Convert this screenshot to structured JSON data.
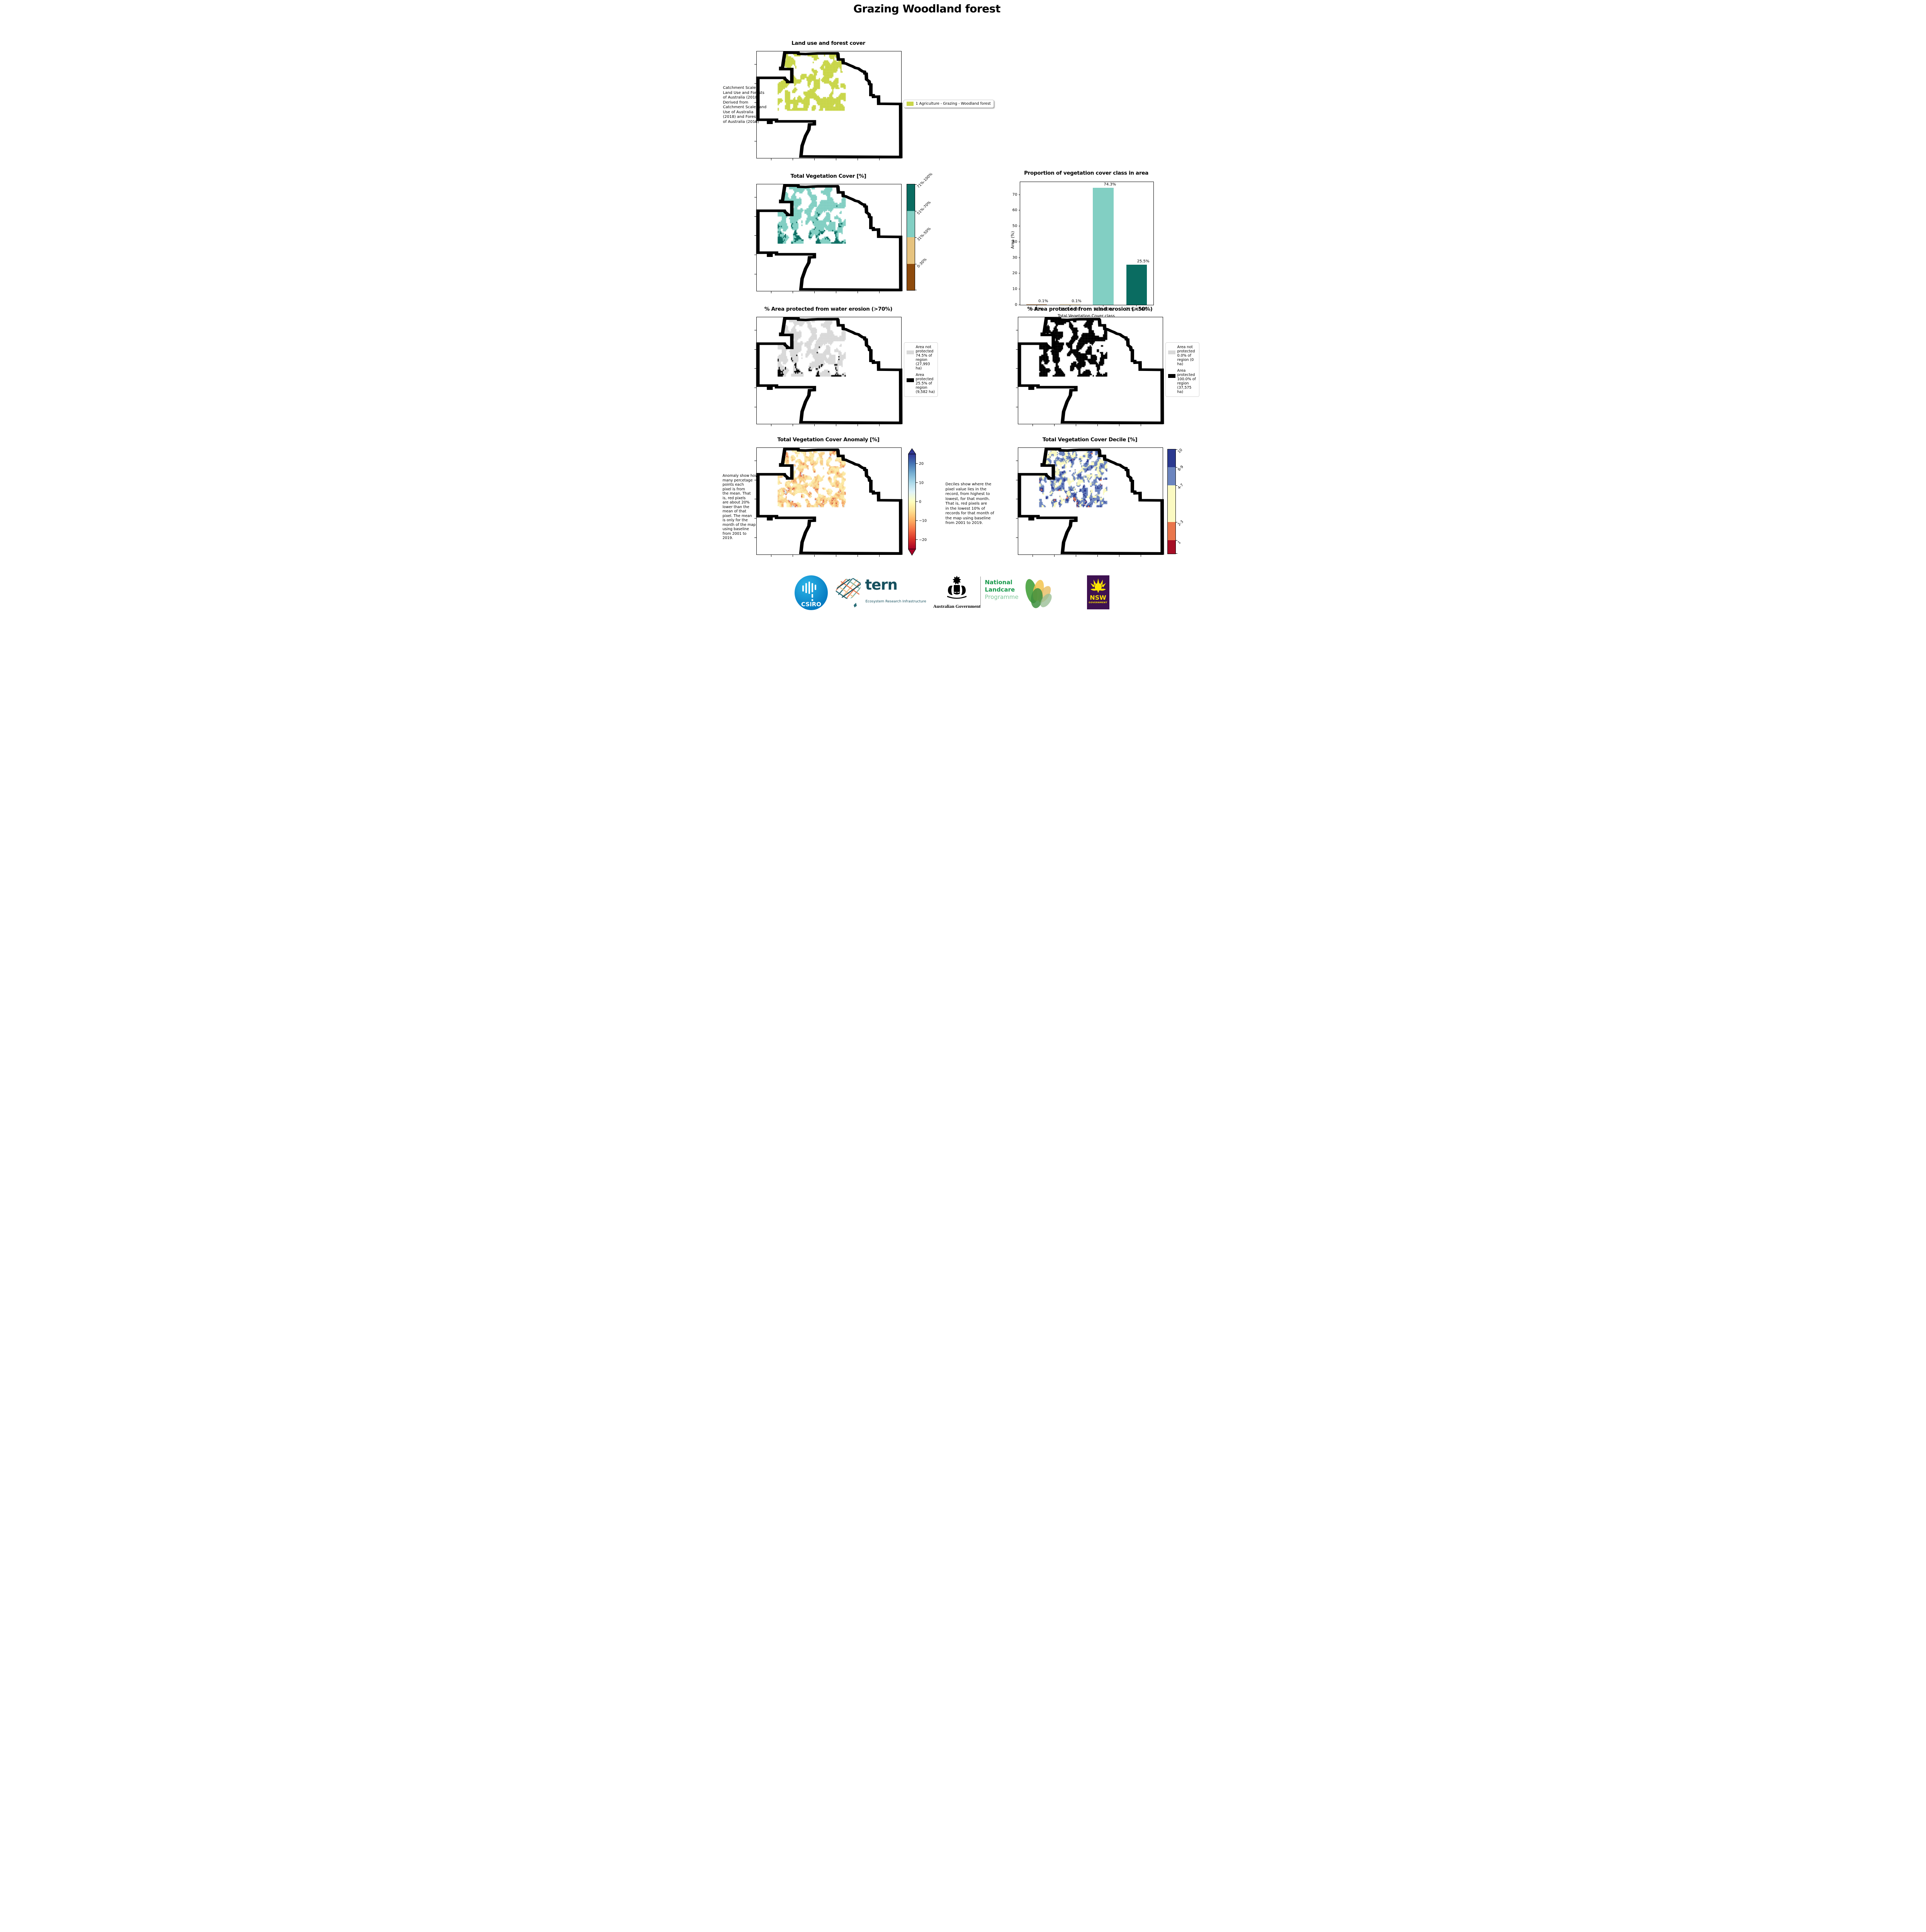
{
  "page": {
    "title": "Grazing Woodland forest"
  },
  "panels": {
    "landuse": {
      "title": "Land use and forest cover",
      "caption": " Catchment Scale\nLand Use and Forests\nof Australia (2018)\nDerived from\nCatchment Scale Land\nUse of Australia\n(2018) and Forests\nof Australia (2018)",
      "legend": {
        "label": "1 Agriculture - Grazing - Woodland forest",
        "color": "#c9d64a"
      }
    },
    "tvc": {
      "title": "Total Vegetation Cover [%]",
      "colorbar": {
        "labels": [
          "71%-100%",
          "51%-70%",
          "31%-50%",
          "0-30%"
        ],
        "colors": [
          "#0a6c61",
          "#82cfc3",
          "#e6c37f",
          "#8d4a0c"
        ]
      }
    },
    "water": {
      "title": "% Area protected from water erosion (>70%)",
      "legend": [
        {
          "label": "Area not protected 74.5% of region (27,993 ha)",
          "color": "#d9d9d9"
        },
        {
          "label": "Area protected 25.5% of region (9,582 ha)",
          "color": "#000000"
        }
      ]
    },
    "wind": {
      "title": "% Area protected from wind erosion (>50%)",
      "legend": [
        {
          "label": "Area not protected 0.0% of region (0 ha)",
          "color": "#d9d9d9"
        },
        {
          "label": "Area protected 100.0% of region (37,575 ha)",
          "color": "#000000"
        }
      ]
    },
    "anomaly": {
      "title": "Total Vegetation Cover Anomaly [%]",
      "caption": "Anomaly show how\nmany percetage\npoints each\npixel is from\nthe mean. That\nis, red pixels\nare about 20%\nlower than the\nmean of that\npixel. The mean\nis only for the\nmonth of the map\nusing baseline\nfrom 2001 to\n2019.",
      "colorbar": {
        "ticks": [
          "20",
          "10",
          "0",
          "−10",
          "−20"
        ],
        "top_color": "#313695",
        "bottom_color": "#a50026"
      }
    },
    "decile": {
      "title": "Total Vegetation Cover Decile [%]",
      "caption": "Deciles show where the\npixel value lies in the\nrecord, from highest to\nlowest, for that month.\nThat is, red pixels are\nin the lowest 10% of\nrecords for that month of\nthe map using baseline\nfrom 2001 to 2019.",
      "colorbar": {
        "labels": [
          "10",
          "8-9",
          "4-7",
          "2-3",
          "1"
        ],
        "colors": [
          "#2b3990",
          "#6c85bf",
          "#fbfac2",
          "#e9764c",
          "#a60f26"
        ],
        "heights": [
          17,
          17.5,
          35,
          17.5,
          13
        ]
      }
    }
  },
  "chart_data": {
    "type": "bar",
    "title": "Proportion of vegetation cover class in area",
    "categories": [
      "0-30%",
      "31%-50%",
      "51%-70%",
      "71%-100%"
    ],
    "values": [
      0.1,
      0.1,
      74.3,
      25.5
    ],
    "value_labels": [
      "0.1%",
      "0.1%",
      "74.3%",
      "25.5%"
    ],
    "bar_colors": [
      "#8d4a0c",
      "#e6c37f",
      "#82cfc3",
      "#0a6c61"
    ],
    "xlabel": "Total Vegetation Cover class",
    "ylabel": "Area (%)",
    "ylim": [
      0,
      78
    ],
    "yticks": [
      0,
      10,
      20,
      30,
      40,
      50,
      60,
      70
    ],
    "legend_position": "none",
    "grid": false
  },
  "maps": [
    {
      "id": "landuse",
      "texture": {
        "seed": 11,
        "coverage": 0.5,
        "bias": 0.0,
        "palette": [
          {
            "c": "#c9d64a",
            "w": 1
          }
        ]
      }
    },
    {
      "id": "tvc",
      "texture": {
        "seed": 21,
        "coverage": 0.55,
        "bias": 0.45,
        "palette": [
          {
            "c": "#82cfc3",
            "w": 0.7
          },
          {
            "c": "#0a6c61",
            "w": 0.29
          },
          {
            "c": "#e6c37f",
            "w": 0.01
          }
        ]
      }
    },
    {
      "id": "water",
      "texture": {
        "seed": 21,
        "coverage": 0.55,
        "bias": 0.45,
        "palette": [
          {
            "c": "#d9d9d9",
            "w": 0.745
          },
          {
            "c": "#000000",
            "w": 0.255
          }
        ]
      }
    },
    {
      "id": "wind",
      "texture": {
        "seed": 21,
        "coverage": 0.5,
        "bias": 0.0,
        "palette": [
          {
            "c": "#000000",
            "w": 1
          }
        ]
      }
    },
    {
      "id": "anomaly",
      "texture": {
        "seed": 51,
        "coverage": 0.55,
        "bias": 0.12,
        "cols": 84,
        "rows": 56,
        "palette": [
          {
            "c": "#fdf3bb",
            "w": 0.3
          },
          {
            "c": "#fce8a4",
            "w": 0.2
          },
          {
            "c": "#f8cf8a",
            "w": 0.15
          },
          {
            "c": "#f4a96b",
            "w": 0.09
          },
          {
            "c": "#e8734d",
            "w": 0.04
          },
          {
            "c": "#c2382e",
            "w": 0.02
          },
          {
            "c": "#ddeaf3",
            "w": 0.1
          },
          {
            "c": "#b8d8ea",
            "w": 0.07
          },
          {
            "c": "#8fc2dd",
            "w": 0.03
          }
        ]
      }
    },
    {
      "id": "decile",
      "texture": {
        "seed": 61,
        "coverage": 0.55,
        "bias": 0.1,
        "cols": 84,
        "rows": 56,
        "palette": [
          {
            "c": "#fbfac2",
            "w": 0.42
          },
          {
            "c": "#6c85bf",
            "w": 0.22
          },
          {
            "c": "#2b3990",
            "w": 0.13
          },
          {
            "c": "#e9764c",
            "w": 0.15
          },
          {
            "c": "#a60f26",
            "w": 0.08
          }
        ]
      }
    }
  ],
  "footer": {
    "csiro_label": "CSIRO",
    "tern_word": "tern",
    "tern_sub": "Ecosystem Research Infrastructure",
    "aus_gov": "Australian Government",
    "landcare_line1": "National",
    "landcare_line2": "Landcare",
    "landcare_line3": "Programme",
    "nsw": "NSW",
    "nsw_sub": "GOVERNMENT"
  }
}
